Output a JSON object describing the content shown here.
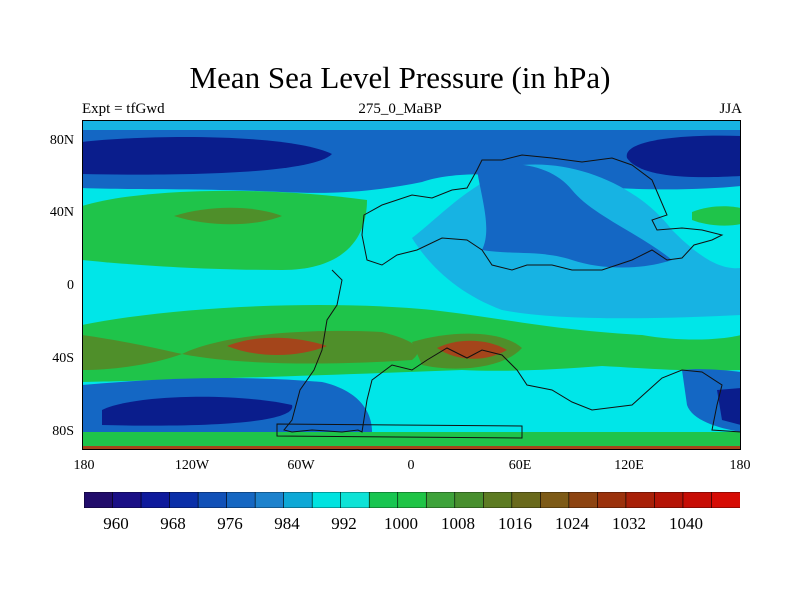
{
  "title": "Mean Sea Level Pressure (in hPa)",
  "left_string": "Expt = tfGwd",
  "center_string": "275_0_MaBP",
  "right_string": "JJA",
  "y_axis": {
    "ticks": [
      "80N",
      "40N",
      "0",
      "40S",
      "80S"
    ]
  },
  "x_axis": {
    "ticks": [
      "180",
      "120W",
      "60W",
      "0",
      "60E",
      "120E",
      "180"
    ]
  },
  "colorbar": {
    "colors": [
      "#210c6b",
      "#1a0f86",
      "#0e1a9c",
      "#0a2fa8",
      "#1151b8",
      "#1567c2",
      "#1d82cd",
      "#0ea8d6",
      "#00e3e0",
      "#0ee3d6",
      "#18c550",
      "#1fc446",
      "#3ea23a",
      "#488f2e",
      "#5d7b22",
      "#6a6a1c",
      "#7d5a16",
      "#8d4411",
      "#9b320c",
      "#a82008",
      "#b51406",
      "#c70d05",
      "#d60b04"
    ],
    "labels": [
      "960",
      "968",
      "976",
      "984",
      "992",
      "1000",
      "1008",
      "1016",
      "1024",
      "1032",
      "1040"
    ]
  },
  "field_colors": {
    "band_cyan": "#00e6e8",
    "band_lightblue": "#17b3e3",
    "band_blue": "#1467c4",
    "band_navy": "#0a1d8c",
    "band_deepnavy": "#0a1274",
    "band_green": "#1fc44a",
    "band_olive": "#4f8f2a",
    "band_brown": "#a4451b"
  }
}
